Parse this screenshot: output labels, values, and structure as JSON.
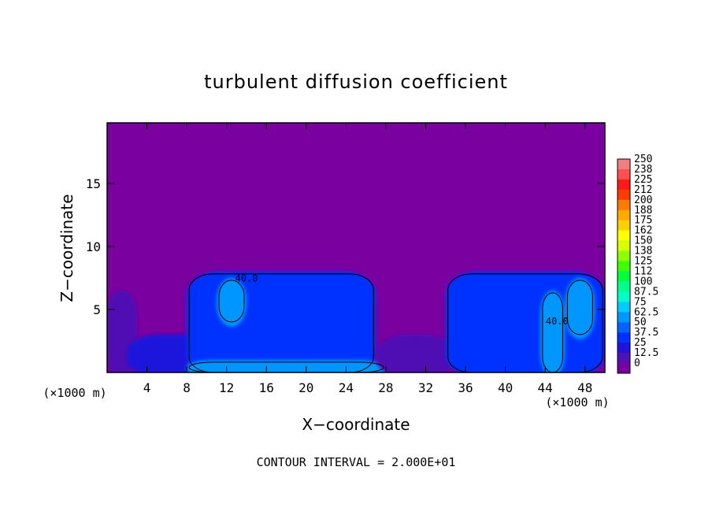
{
  "chart_data": {
    "type": "heatmap",
    "title": "turbulent diffusion coefficient",
    "xlabel": "X−coordinate",
    "ylabel": "Z−coordinate",
    "x_unit_left": "(×1000 m)",
    "x_unit_right": "(×1000 m)",
    "xlim": [
      0,
      50
    ],
    "ylim": [
      0,
      19.8
    ],
    "x_ticks": [
      4,
      8,
      12,
      16,
      20,
      24,
      28,
      32,
      36,
      40,
      44,
      48
    ],
    "y_ticks": [
      5,
      10,
      15
    ],
    "contour_labels": [
      {
        "text": "40.0",
        "x": 14,
        "z": 7.2
      },
      {
        "text": "40.0",
        "x": 45.2,
        "z": 3.8
      }
    ],
    "footer": "CONTOUR INTERVAL = 2.000E+01",
    "colorbar": {
      "labels": [
        "250",
        "238",
        "225",
        "212",
        "200",
        "188",
        "175",
        "162",
        "150",
        "138",
        "125",
        "112",
        "100",
        "87.5",
        "75",
        "62.5",
        "50",
        "37.5",
        "25",
        "12.5",
        "0"
      ],
      "colors": [
        "#f08080",
        "#ff5050",
        "#ff1a1a",
        "#ff3c00",
        "#ff7a00",
        "#ffaa00",
        "#ffd000",
        "#ffff00",
        "#d6ff00",
        "#8cff00",
        "#3cff00",
        "#00ff3c",
        "#00ff8c",
        "#00ffc8",
        "#00ccff",
        "#0096ff",
        "#0064ff",
        "#0032ff",
        "#1e14dc",
        "#5010b4",
        "#7a00a0"
      ]
    },
    "field": {
      "background_value": 0,
      "regions": [
        {
          "x": [
            0,
            3
          ],
          "z": [
            0,
            6.5
          ],
          "value": 12.5
        },
        {
          "x": [
            2,
            11
          ],
          "z": [
            0,
            3
          ],
          "value": 25
        },
        {
          "x": [
            8,
            27
          ],
          "z": [
            0,
            8
          ],
          "value": 37.5
        },
        {
          "x": [
            11,
            14
          ],
          "z": [
            4,
            7.5
          ],
          "value": 62.5
        },
        {
          "x": [
            8,
            28
          ],
          "z": [
            0,
            1
          ],
          "value": 62.5
        },
        {
          "x": [
            27,
            35
          ],
          "z": [
            0,
            3
          ],
          "value": 12.5
        },
        {
          "x": [
            34,
            50
          ],
          "z": [
            0,
            8
          ],
          "value": 37.5
        },
        {
          "x": [
            43.5,
            46
          ],
          "z": [
            0,
            6.5
          ],
          "value": 62.5
        },
        {
          "x": [
            46,
            49
          ],
          "z": [
            3,
            7.5
          ],
          "value": 62.5
        }
      ]
    }
  }
}
